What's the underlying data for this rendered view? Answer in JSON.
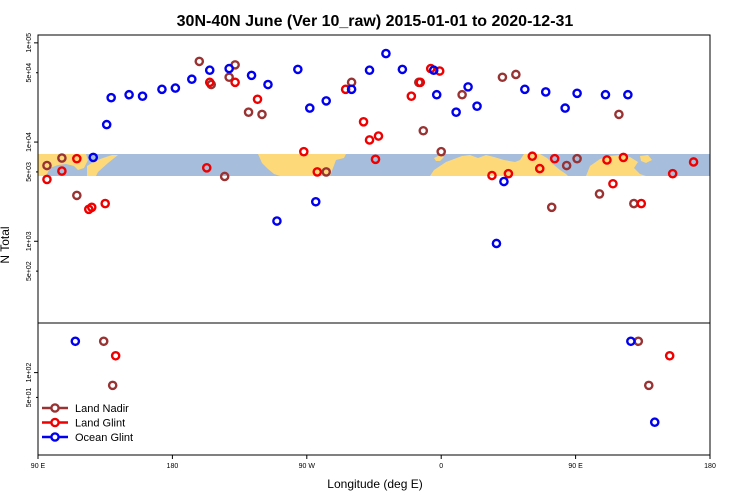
{
  "chart_data": {
    "type": "scatter",
    "title": "30N-40N June (Ver 10_raw)   2015-01-01 to 2020-12-31",
    "xlabel": "Longitude (deg E)",
    "ylabel": "N Total",
    "x_tick_labels": [
      "90 E",
      "180",
      "90 W",
      "0",
      "90 E",
      "180"
    ],
    "x_range": [
      90,
      540
    ],
    "upper_panel": {
      "scale": "log",
      "y_range": [
        150,
        120000
      ],
      "y_ticks": [
        1000,
        10000,
        100000
      ],
      "y_tick_labels": [
        "1e+03",
        "1e+04",
        "1e+05"
      ],
      "y_minor_ticks": [
        500,
        5000,
        50000
      ],
      "y_minor_tick_labels": [
        "5e+02",
        "5e+03",
        "5e+04"
      ]
    },
    "lower_panel": {
      "scale": "log",
      "y_range": [
        10,
        400
      ],
      "y_ticks": [
        100
      ],
      "y_tick_labels": [
        "1e+02"
      ],
      "y_minor_ticks": [
        50
      ],
      "y_minor_tick_labels": [
        "5e+01"
      ]
    },
    "map_strip": {
      "lat_range": "30N-40N",
      "ocean_color": "#a6bddb",
      "land_color": "#fdd97a"
    },
    "series": [
      {
        "name": "Land Nadir",
        "color": "#993333",
        "upper_points": [
          [
            96,
            5800
          ],
          [
            106,
            6900
          ],
          [
            116,
            2900
          ],
          [
            198,
            65000
          ],
          [
            206,
            38000
          ],
          [
            215,
            4500
          ],
          [
            218,
            45000
          ],
          [
            222,
            60000
          ],
          [
            231,
            20000
          ],
          [
            240,
            19000
          ],
          [
            283,
            5000
          ],
          [
            300,
            40000
          ],
          [
            345,
            40000
          ],
          [
            348,
            13000
          ],
          [
            360,
            8000
          ],
          [
            374,
            30000
          ],
          [
            401,
            45000
          ],
          [
            410,
            48000
          ],
          [
            434,
            2200
          ],
          [
            444,
            5800
          ],
          [
            451,
            6800
          ],
          [
            466,
            3000
          ],
          [
            479,
            19000
          ],
          [
            489,
            2400
          ]
        ],
        "lower_points": [
          [
            134,
            240
          ],
          [
            140,
            70
          ],
          [
            492,
            240
          ],
          [
            499,
            70
          ]
        ]
      },
      {
        "name": "Land Glint",
        "color": "#ee0000",
        "upper_points": [
          [
            96,
            4200
          ],
          [
            106,
            5100
          ],
          [
            116,
            6800
          ],
          [
            124,
            2100
          ],
          [
            126,
            2200
          ],
          [
            135,
            2400
          ],
          [
            203,
            5500
          ],
          [
            205,
            40000
          ],
          [
            222,
            40000
          ],
          [
            237,
            27000
          ],
          [
            268,
            8000
          ],
          [
            277,
            5000
          ],
          [
            296,
            34000
          ],
          [
            308,
            16000
          ],
          [
            312,
            10500
          ],
          [
            316,
            6700
          ],
          [
            318,
            11500
          ],
          [
            340,
            29000
          ],
          [
            346,
            40000
          ],
          [
            353,
            55000
          ],
          [
            359,
            52000
          ],
          [
            394,
            4600
          ],
          [
            405,
            4800
          ],
          [
            421,
            7200
          ],
          [
            426,
            5400
          ],
          [
            436,
            6800
          ],
          [
            471,
            6600
          ],
          [
            475,
            3800
          ],
          [
            482,
            7000
          ],
          [
            494,
            2400
          ],
          [
            515,
            4800
          ],
          [
            529,
            6300
          ]
        ],
        "lower_points": [
          [
            142,
            160
          ],
          [
            513,
            160
          ]
        ]
      },
      {
        "name": "Ocean Glint",
        "color": "#0000ee",
        "upper_points": [
          [
            127,
            7000
          ],
          [
            136,
            15000
          ],
          [
            139,
            28000
          ],
          [
            151,
            30000
          ],
          [
            160,
            29000
          ],
          [
            173,
            34000
          ],
          [
            182,
            35000
          ],
          [
            193,
            43000
          ],
          [
            205,
            53000
          ],
          [
            218,
            55000
          ],
          [
            233,
            47000
          ],
          [
            244,
            38000
          ],
          [
            250,
            1600
          ],
          [
            264,
            54000
          ],
          [
            272,
            22000
          ],
          [
            276,
            2500
          ],
          [
            283,
            26000
          ],
          [
            300,
            34000
          ],
          [
            312,
            53000
          ],
          [
            323,
            78000
          ],
          [
            334,
            54000
          ],
          [
            355,
            53000
          ],
          [
            357,
            30000
          ],
          [
            370,
            20000
          ],
          [
            378,
            36000
          ],
          [
            384,
            23000
          ],
          [
            397,
            950
          ],
          [
            402,
            4000
          ],
          [
            416,
            34000
          ],
          [
            430,
            32000
          ],
          [
            443,
            22000
          ],
          [
            451,
            31000
          ],
          [
            470,
            30000
          ],
          [
            485,
            30000
          ]
        ],
        "lower_points": [
          [
            115,
            240
          ],
          [
            487,
            240
          ],
          [
            503,
            25
          ]
        ]
      }
    ],
    "legend": {
      "position": "bottom-left",
      "entries": [
        "Land Nadir",
        "Land Glint",
        "Ocean Glint"
      ]
    }
  }
}
